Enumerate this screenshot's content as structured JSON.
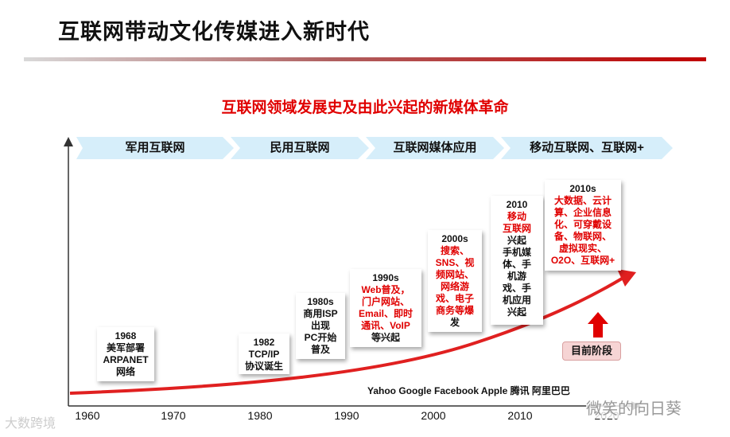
{
  "title": "互联网带动文化传媒进入新时代",
  "subtitle": "互联网领域发展史及由此兴起的新媒体革命",
  "eras": [
    "军用互联网",
    "民用互联网",
    "互联网媒体应用",
    "移动互联网、互联网+"
  ],
  "milestones": [
    {
      "lines": [
        {
          "t": "1968",
          "red": false
        },
        {
          "t": "美军部署",
          "red": false
        },
        {
          "t": "ARPANET",
          "red": false
        },
        {
          "t": "网络",
          "red": false
        }
      ]
    },
    {
      "lines": [
        {
          "t": "1982",
          "red": false
        },
        {
          "t": "TCP/IP",
          "red": false
        },
        {
          "t": "协议诞生",
          "red": false
        }
      ]
    },
    {
      "lines": [
        {
          "t": "1980s",
          "red": false
        },
        {
          "t": "商用ISP",
          "red": false
        },
        {
          "t": "出现",
          "red": false
        },
        {
          "t": "PC开始",
          "red": false
        },
        {
          "t": "普及",
          "red": false
        }
      ]
    },
    {
      "lines": [
        {
          "t": "1990s",
          "red": false
        },
        {
          "t": "Web普及，",
          "red": true
        },
        {
          "t": "门户网站、",
          "red": true
        },
        {
          "t": "Email、即时",
          "red": true
        },
        {
          "t": "通讯、VoIP",
          "red": true
        },
        {
          "t": "等兴起",
          "red": false
        }
      ]
    },
    {
      "lines": [
        {
          "t": "2000s",
          "red": false
        },
        {
          "t": "搜索、",
          "red": true
        },
        {
          "t": "SNS、视",
          "red": true
        },
        {
          "t": "频网站、",
          "red": true
        },
        {
          "t": "网络游",
          "red": true
        },
        {
          "t": "戏、电子",
          "red": true
        },
        {
          "t": "商务等爆",
          "red": true
        },
        {
          "t": "发",
          "red": false
        }
      ]
    },
    {
      "lines": [
        {
          "t": "2010",
          "red": false
        },
        {
          "t": "移动",
          "red": true
        },
        {
          "t": "互联网",
          "red": true
        },
        {
          "t": "兴起",
          "red": false
        },
        {
          "t": "手机媒",
          "red": false
        },
        {
          "t": "体、手",
          "red": false
        },
        {
          "t": "机游",
          "red": false
        },
        {
          "t": "戏、手",
          "red": false
        },
        {
          "t": "机应用",
          "red": false
        },
        {
          "t": "兴起",
          "red": false
        }
      ]
    },
    {
      "lines": [
        {
          "t": "2010s",
          "red": false
        },
        {
          "t": "大数据、云计",
          "red": true
        },
        {
          "t": "算、企业信息",
          "red": true
        },
        {
          "t": "化、可穿戴设",
          "red": true
        },
        {
          "t": "备、物联网、",
          "red": true
        },
        {
          "t": "虚拟现实、",
          "red": true
        },
        {
          "t": "O2O、互联网+",
          "red": true
        }
      ]
    }
  ],
  "now_label": "目前阶段",
  "companies": "Yahoo  Google  Facebook  Apple  腾讯  阿里巴巴",
  "axis_ticks": [
    "1960",
    "1970",
    "1980",
    "1990",
    "2000",
    "2010",
    "2020"
  ],
  "watermark_left": "大数跨境",
  "watermark_right": "微笑的向日葵",
  "colors": {
    "accent_red": "#e00000",
    "era_blue": "#d6eefa",
    "arrow_red": "#e02020"
  }
}
